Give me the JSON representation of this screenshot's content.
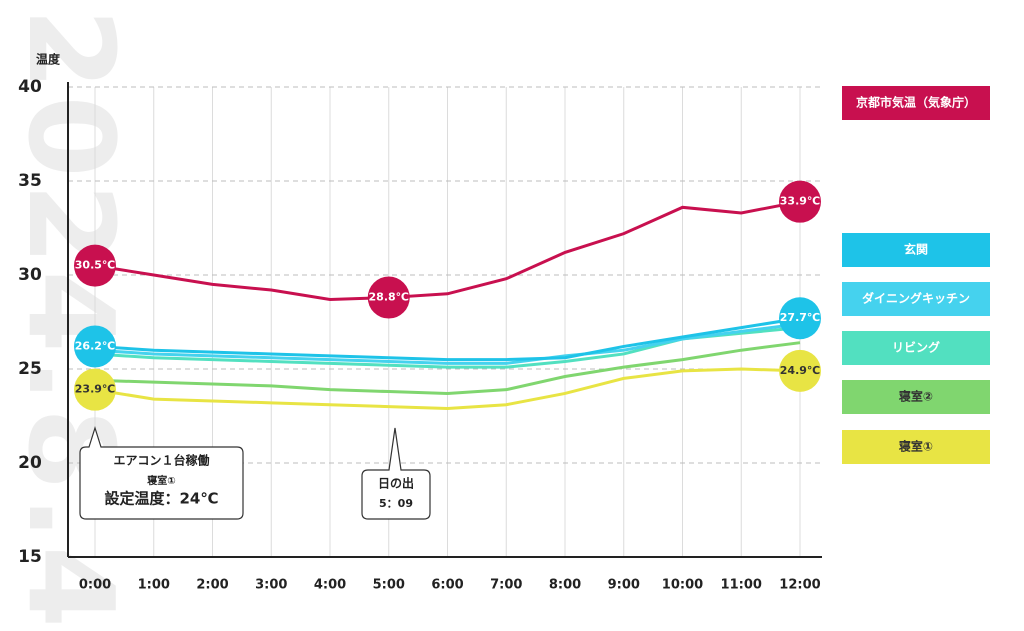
{
  "chart_data": {
    "type": "line",
    "watermark": "2024.8.4",
    "y_label": "温度",
    "categories": [
      "0:00",
      "1:00",
      "2:00",
      "3:00",
      "4:00",
      "5:00",
      "6:00",
      "7:00",
      "8:00",
      "9:00",
      "10:00",
      "11:00",
      "12:00"
    ],
    "ylim": [
      15,
      40
    ],
    "yticks": [
      15,
      20,
      25,
      30,
      35,
      40
    ],
    "grid": true,
    "series": [
      {
        "name": "京都市気温（気象庁）",
        "color": "#c8104f",
        "text_color": "#ffffff",
        "values": [
          30.5,
          30.0,
          29.5,
          29.2,
          28.7,
          28.8,
          29.0,
          29.8,
          31.2,
          32.2,
          33.6,
          33.3,
          33.9
        ],
        "value_labels": [
          "30.5℃",
          null,
          null,
          null,
          null,
          "28.8℃",
          null,
          null,
          null,
          null,
          null,
          null,
          "33.9℃"
        ]
      },
      {
        "name": "玄関",
        "color": "#1ec3e8",
        "text_color": "#ffffff",
        "values": [
          26.2,
          26.0,
          25.9,
          25.8,
          25.7,
          25.6,
          25.5,
          25.5,
          25.6,
          26.2,
          26.7,
          27.2,
          27.7
        ],
        "value_labels": [
          "26.2℃",
          null,
          null,
          null,
          null,
          null,
          null,
          null,
          null,
          null,
          null,
          null,
          "27.7℃"
        ]
      },
      {
        "name": "ダイニングキッチン",
        "color": "#45d2ee",
        "text_color": "#ffffff",
        "values": [
          26.0,
          25.8,
          25.7,
          25.6,
          25.5,
          25.4,
          25.3,
          25.3,
          25.7,
          26.0,
          26.6,
          27.0,
          27.4
        ]
      },
      {
        "name": "リビング",
        "color": "#52e0c0",
        "text_color": "#ffffff",
        "values": [
          25.8,
          25.6,
          25.5,
          25.4,
          25.3,
          25.2,
          25.1,
          25.1,
          25.4,
          25.8,
          26.6,
          26.9,
          27.2
        ]
      },
      {
        "name": "寝室②",
        "color": "#80d66f",
        "text_color": "#333333",
        "values": [
          24.4,
          24.3,
          24.2,
          24.1,
          23.9,
          23.8,
          23.7,
          23.9,
          24.6,
          25.1,
          25.5,
          26.0,
          26.4
        ]
      },
      {
        "name": "寝室①",
        "color": "#e8e444",
        "text_color": "#333333",
        "values": [
          23.9,
          23.4,
          23.3,
          23.2,
          23.1,
          23.0,
          22.9,
          23.1,
          23.7,
          24.5,
          24.9,
          25.0,
          24.9
        ],
        "value_labels": [
          "23.9℃",
          null,
          null,
          null,
          null,
          null,
          null,
          null,
          null,
          null,
          null,
          null,
          "24.9℃"
        ]
      }
    ],
    "annotations": [
      {
        "lines": [
          "エアコン１台稼働",
          "寝室①",
          "設定温度：24℃"
        ]
      },
      {
        "lines": [
          "日の出",
          "5：09"
        ]
      }
    ]
  }
}
